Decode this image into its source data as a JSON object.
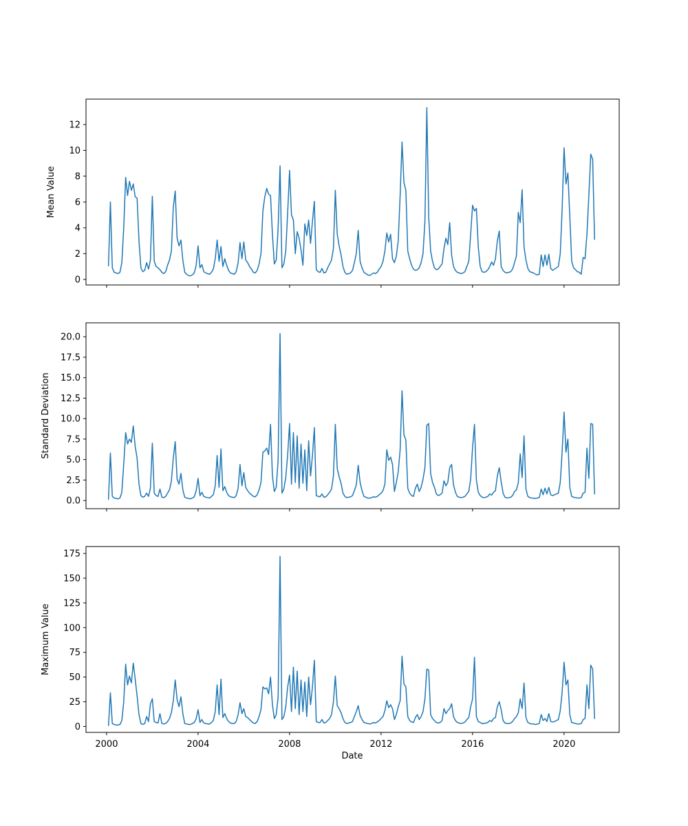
{
  "figure": {
    "background": "#ffffff",
    "line_color": "#1f77b4",
    "axis_color": "#000000",
    "xlabel": "Date"
  },
  "chart_data": [
    {
      "type": "line",
      "title": "",
      "ylabel": "Mean Value",
      "xlabel": "",
      "x_start": "2000-02",
      "x_interval": "monthly",
      "x_tick_years": [
        2000,
        2004,
        2008,
        2012,
        2016,
        2020
      ],
      "x_tick_labels": [
        "2000",
        "2004",
        "2008",
        "2012",
        "2016",
        "2020"
      ],
      "y_tick_values": [
        0,
        2,
        4,
        6,
        8,
        10,
        12
      ],
      "y_tick_labels": [
        "0",
        "2",
        "4",
        "6",
        "8",
        "10",
        "12"
      ],
      "xlim": [
        1999.1,
        2022.41
      ],
      "ylim": [
        -0.43,
        13.97
      ],
      "grid": false,
      "legend": "none",
      "values": [
        1.05,
        6.0,
        0.9,
        0.55,
        0.5,
        0.45,
        0.55,
        1.3,
        4.0,
        7.9,
        6.5,
        7.6,
        6.9,
        7.4,
        6.4,
        6.3,
        3.0,
        0.9,
        0.6,
        0.7,
        1.3,
        0.8,
        1.5,
        6.45,
        1.4,
        1.0,
        0.9,
        0.75,
        0.55,
        0.45,
        0.6,
        1.1,
        1.5,
        2.2,
        5.6,
        6.85,
        3.2,
        2.6,
        3.05,
        1.5,
        0.55,
        0.4,
        0.3,
        0.28,
        0.35,
        0.5,
        1.1,
        2.6,
        0.9,
        1.15,
        0.6,
        0.5,
        0.45,
        0.4,
        0.55,
        0.8,
        1.6,
        3.05,
        1.4,
        2.55,
        1.0,
        1.6,
        1.1,
        0.7,
        0.5,
        0.45,
        0.4,
        0.6,
        1.3,
        2.85,
        1.6,
        2.9,
        1.5,
        1.3,
        1.0,
        0.8,
        0.55,
        0.5,
        0.7,
        1.2,
        2.0,
        5.3,
        6.4,
        7.05,
        6.6,
        6.5,
        3.5,
        1.2,
        1.5,
        4.0,
        8.8,
        0.9,
        1.2,
        2.2,
        5.2,
        8.45,
        5.0,
        4.6,
        2.0,
        3.7,
        3.2,
        2.3,
        1.1,
        4.3,
        3.4,
        4.6,
        2.8,
        4.5,
        6.05,
        0.75,
        0.6,
        0.55,
        0.85,
        0.5,
        0.55,
        0.9,
        1.2,
        1.5,
        2.4,
        6.9,
        3.5,
        2.6,
        1.9,
        1.0,
        0.55,
        0.4,
        0.45,
        0.5,
        0.7,
        1.3,
        2.0,
        3.8,
        1.4,
        0.9,
        0.55,
        0.45,
        0.35,
        0.3,
        0.4,
        0.5,
        0.45,
        0.55,
        0.8,
        1.0,
        1.4,
        2.2,
        3.6,
        2.9,
        3.5,
        1.6,
        1.3,
        1.8,
        3.0,
        6.5,
        10.65,
        7.5,
        6.9,
        2.2,
        1.6,
        1.1,
        0.8,
        0.7,
        0.75,
        0.9,
        1.3,
        2.0,
        4.5,
        13.3,
        4.8,
        2.2,
        1.4,
        0.9,
        0.75,
        0.8,
        1.0,
        1.2,
        2.4,
        3.2,
        2.7,
        4.4,
        1.9,
        1.0,
        0.7,
        0.55,
        0.5,
        0.45,
        0.5,
        0.6,
        1.0,
        1.4,
        3.5,
        5.75,
        5.3,
        5.5,
        2.5,
        1.0,
        0.6,
        0.55,
        0.6,
        0.75,
        1.0,
        1.35,
        1.1,
        1.6,
        3.0,
        3.75,
        1.0,
        0.7,
        0.55,
        0.5,
        0.55,
        0.6,
        0.8,
        1.3,
        1.8,
        5.2,
        4.4,
        6.95,
        2.5,
        1.5,
        0.85,
        0.6,
        0.55,
        0.5,
        0.4,
        0.35,
        0.4,
        1.9,
        1.0,
        1.9,
        1.1,
        1.95,
        0.85,
        0.7,
        0.8,
        0.9,
        1.0,
        2.0,
        5.5,
        10.2,
        7.4,
        8.25,
        4.9,
        1.4,
        0.9,
        0.75,
        0.6,
        0.55,
        0.4,
        1.7,
        1.6,
        3.5,
        6.5,
        9.7,
        9.3,
        3.1
      ]
    },
    {
      "type": "line",
      "title": "",
      "ylabel": "Standard Deviation",
      "xlabel": "",
      "x_start": "2000-02",
      "x_interval": "monthly",
      "x_tick_years": [
        2000,
        2004,
        2008,
        2012,
        2016,
        2020
      ],
      "x_tick_labels": [
        "2000",
        "2004",
        "2008",
        "2012",
        "2016",
        "2020"
      ],
      "y_tick_values": [
        0,
        2.5,
        5,
        7.5,
        10,
        12.5,
        15,
        17.5,
        20
      ],
      "y_tick_labels": [
        "0.0",
        "2.5",
        "5.0",
        "7.5",
        "10.0",
        "12.5",
        "15.0",
        "17.5",
        "20.0"
      ],
      "xlim": [
        1999.1,
        2022.41
      ],
      "ylim": [
        -1.0,
        21.7
      ],
      "grid": false,
      "legend": "none",
      "values": [
        0.15,
        5.8,
        0.5,
        0.3,
        0.25,
        0.2,
        0.3,
        1.0,
        4.5,
        8.3,
        6.9,
        7.5,
        7.1,
        9.1,
        6.6,
        5.2,
        2.0,
        0.6,
        0.4,
        0.5,
        0.9,
        0.5,
        1.5,
        7.0,
        0.9,
        0.6,
        0.5,
        1.4,
        0.4,
        0.35,
        0.5,
        0.9,
        1.3,
        2.4,
        5.2,
        7.2,
        2.6,
        2.0,
        3.3,
        1.3,
        0.4,
        0.3,
        0.25,
        0.2,
        0.3,
        0.45,
        1.2,
        2.7,
        0.6,
        1.0,
        0.5,
        0.4,
        0.35,
        0.3,
        0.5,
        0.7,
        1.8,
        5.5,
        1.6,
        6.3,
        1.2,
        1.7,
        1.0,
        0.6,
        0.45,
        0.4,
        0.35,
        0.6,
        1.5,
        4.4,
        1.8,
        3.4,
        1.6,
        1.2,
        0.9,
        0.7,
        0.5,
        0.45,
        0.7,
        1.3,
        2.2,
        5.9,
        6.05,
        6.4,
        5.6,
        9.3,
        3.0,
        1.1,
        1.6,
        5.0,
        20.4,
        0.9,
        1.4,
        2.8,
        5.6,
        9.4,
        2.0,
        8.3,
        2.2,
        7.9,
        1.5,
        6.9,
        2.1,
        6.2,
        1.2,
        7.3,
        3.0,
        5.5,
        8.9,
        0.6,
        0.5,
        0.45,
        0.8,
        0.4,
        0.45,
        0.7,
        1.0,
        1.4,
        3.0,
        9.3,
        3.9,
        2.9,
        2.1,
        0.9,
        0.5,
        0.35,
        0.4,
        0.45,
        0.6,
        1.2,
        1.9,
        4.3,
        2.2,
        1.2,
        0.5,
        0.4,
        0.3,
        0.28,
        0.35,
        0.45,
        0.4,
        0.5,
        0.7,
        0.9,
        1.2,
        2.0,
        6.2,
        4.9,
        5.3,
        4.4,
        1.1,
        2.2,
        3.5,
        6.2,
        13.4,
        8.0,
        7.4,
        1.5,
        0.9,
        0.6,
        0.5,
        1.5,
        2.0,
        1.1,
        1.6,
        2.6,
        4.0,
        9.2,
        9.4,
        3.3,
        2.2,
        1.6,
        0.8,
        0.6,
        0.7,
        0.9,
        2.4,
        1.8,
        2.2,
        4.0,
        4.4,
        1.9,
        1.0,
        0.5,
        0.4,
        0.35,
        0.4,
        0.5,
        0.8,
        1.1,
        2.6,
        6.5,
        9.3,
        2.5,
        1.0,
        0.6,
        0.4,
        0.35,
        0.4,
        0.5,
        0.8,
        0.65,
        1.0,
        1.2,
        3.0,
        4.0,
        2.3,
        0.9,
        0.4,
        0.3,
        0.35,
        0.4,
        0.6,
        1.1,
        1.3,
        2.2,
        5.7,
        2.8,
        7.9,
        1.4,
        0.5,
        0.35,
        0.3,
        0.28,
        0.25,
        0.3,
        0.35,
        1.4,
        0.7,
        1.5,
        0.8,
        1.6,
        0.7,
        0.6,
        0.7,
        0.8,
        0.9,
        2.2,
        6.0,
        10.8,
        5.9,
        7.5,
        1.6,
        0.5,
        0.4,
        0.35,
        0.3,
        0.3,
        0.35,
        0.9,
        1.0,
        6.4,
        2.7,
        9.4,
        9.3,
        0.8
      ]
    },
    {
      "type": "line",
      "title": "",
      "ylabel": "Maximum Value",
      "xlabel": "Date",
      "x_start": "2000-02",
      "x_interval": "monthly",
      "x_tick_years": [
        2000,
        2004,
        2008,
        2012,
        2016,
        2020
      ],
      "x_tick_labels": [
        "2000",
        "2004",
        "2008",
        "2012",
        "2016",
        "2020"
      ],
      "y_tick_values": [
        0,
        25,
        50,
        75,
        100,
        125,
        150,
        175
      ],
      "y_tick_labels": [
        "0",
        "25",
        "50",
        "75",
        "100",
        "125",
        "150",
        "175"
      ],
      "xlim": [
        1999.1,
        2022.41
      ],
      "ylim": [
        -6.0,
        182.0
      ],
      "grid": false,
      "legend": "none",
      "values": [
        1.0,
        34,
        3,
        2,
        1.5,
        1.5,
        2,
        6,
        25,
        63,
        42,
        51,
        44,
        64,
        48,
        31,
        12,
        3,
        2,
        3,
        10,
        5,
        23,
        28,
        5,
        4,
        3.5,
        13,
        3,
        2.5,
        3,
        5,
        8,
        14,
        26,
        47,
        27,
        20,
        30,
        13,
        3,
        2.5,
        2,
        2,
        3,
        4,
        8,
        17,
        4,
        7,
        3.5,
        3,
        2.5,
        2.5,
        4,
        6,
        15,
        42,
        12,
        48,
        9,
        13,
        8,
        5,
        3.5,
        3,
        3,
        5,
        12,
        24,
        13,
        18,
        10,
        9,
        7,
        5,
        3.5,
        3,
        5,
        10,
        17,
        40,
        38,
        39,
        33,
        50,
        22,
        8,
        12,
        30,
        172,
        7,
        10,
        20,
        40,
        52,
        15,
        60,
        18,
        56,
        12,
        47,
        15,
        45,
        10,
        50,
        22,
        40,
        67,
        5,
        4,
        4,
        7,
        3.5,
        4,
        6,
        8,
        12,
        25,
        51,
        21,
        18,
        14,
        8,
        4,
        3,
        3.5,
        4,
        5,
        10,
        15,
        21,
        11,
        7,
        4,
        3.5,
        3,
        2.5,
        3,
        4,
        3.5,
        4.5,
        6,
        8,
        10,
        16,
        26,
        19,
        22,
        18,
        7,
        12,
        20,
        26,
        71,
        43,
        40,
        10,
        6,
        4.5,
        4,
        9,
        12,
        7,
        10,
        15,
        28,
        58,
        57,
        12,
        8,
        6,
        4,
        3.5,
        4,
        6,
        18,
        13,
        16,
        18,
        23,
        10,
        6,
        4,
        3.5,
        3,
        3.5,
        4.5,
        7,
        9,
        20,
        28,
        70,
        10,
        5,
        4,
        3,
        3,
        3.5,
        4,
        6,
        5,
        8,
        9,
        20,
        25,
        17,
        6,
        3.5,
        3,
        3,
        3.5,
        5,
        8,
        10,
        14,
        28,
        18,
        44,
        9,
        4,
        3,
        2.5,
        2.5,
        2,
        2.5,
        3,
        12,
        6,
        8,
        5,
        13,
        5,
        4.5,
        5,
        6,
        7,
        16,
        35,
        65,
        42,
        47,
        12,
        4,
        3.5,
        3,
        2.5,
        2.5,
        3,
        7,
        8,
        42,
        18,
        62,
        58,
        8
      ]
    }
  ]
}
